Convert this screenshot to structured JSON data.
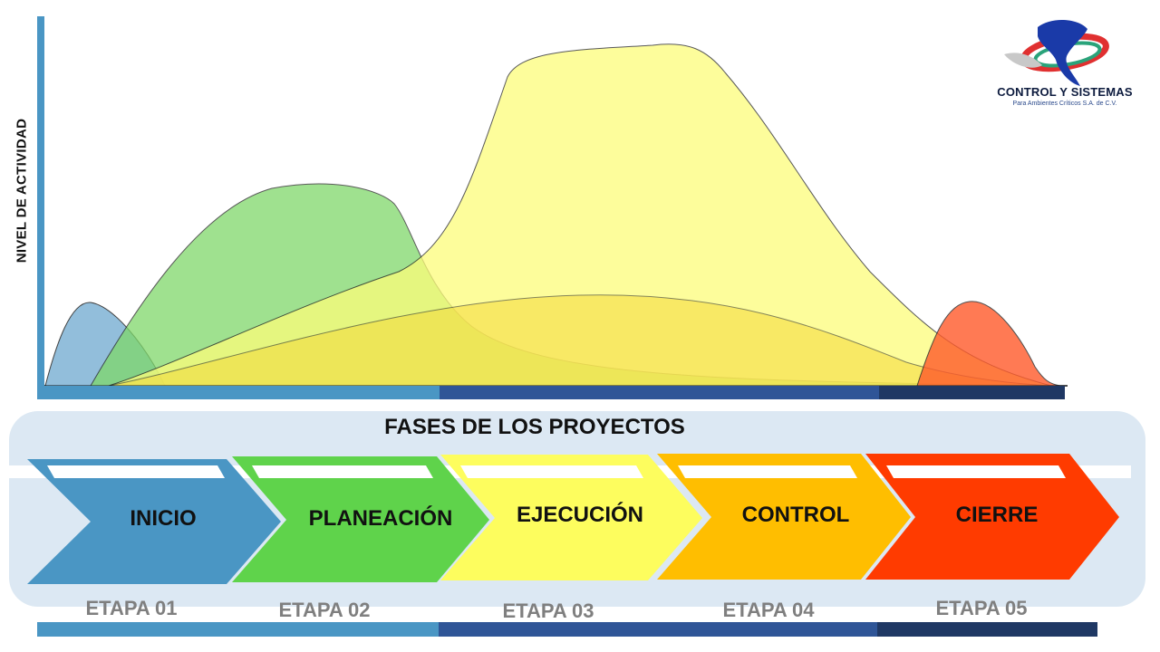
{
  "y_axis_label": "NIVEL DE ACTIVIDAD",
  "logo": {
    "name": "CONTROL Y SISTEMAS",
    "subtitle": "Para Ambientes Críticos S.A. de C.V.",
    "icon": "globe-swoosh-icon"
  },
  "panel_title": "FASES DE LOS PROYECTOS",
  "phases": [
    {
      "label": "INICIO",
      "stage": "ETAPA 01",
      "color": "#4a96c4",
      "curve_color": "#7fb3d5"
    },
    {
      "label": "PLANEACIÓN",
      "stage": "ETAPA 02",
      "color": "#5fd34b",
      "curve_color": "#7fd86a"
    },
    {
      "label": "EJECUCIÓN",
      "stage": "ETAPA 03",
      "color": "#fdfd5e",
      "curve_color": "#fdfd7a"
    },
    {
      "label": "CONTROL",
      "stage": "ETAPA 04",
      "color": "#ffbe00",
      "curve_color": "#f5d93a"
    },
    {
      "label": "CIERRE",
      "stage": "ETAPA 05",
      "color": "#ff3b00",
      "curve_color": "#ff5a2a"
    }
  ],
  "bar_colors": [
    "#4a96c4",
    "#2f5597",
    "#1f3864"
  ]
}
